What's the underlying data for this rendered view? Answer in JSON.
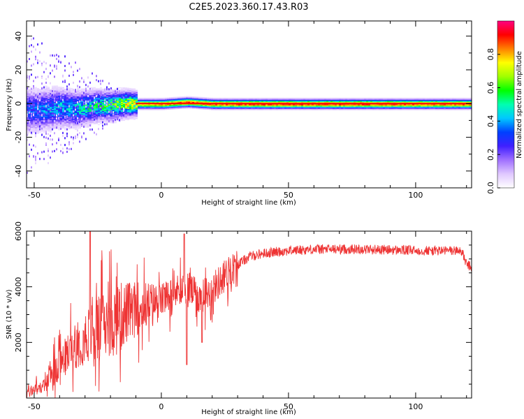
{
  "title": "C2E5.2023.360.17.43.R03",
  "chart_data": [
    {
      "type": "heatmap",
      "xlabel": "Height of straight line (km)",
      "ylabel": "Frequency (Hz)",
      "xlim": [
        -53,
        122
      ],
      "ylim": [
        -50,
        49
      ],
      "x_ticks": [
        -50,
        0,
        50,
        100
      ],
      "y_ticks": [
        -40,
        -20,
        0,
        20,
        40
      ],
      "colorbar": {
        "label": "Normalized spectral amplitude",
        "range": [
          0,
          1
        ],
        "ticks": [
          "0.0",
          "0.2",
          "0.4",
          "0.6",
          "0.8"
        ],
        "colors": [
          "#ffffff",
          "#e0c8ff",
          "#a070ff",
          "#4020ff",
          "#0040ff",
          "#00c8ff",
          "#00ffb0",
          "#00ff00",
          "#a0ff00",
          "#ffff00",
          "#ff8000",
          "#ff0000",
          "#ff0080"
        ]
      },
      "ridge": [
        {
          "x": -50,
          "f": -4,
          "amp": 0.35
        },
        {
          "x": -45,
          "f": -3,
          "amp": 0.4
        },
        {
          "x": -40,
          "f": -2,
          "amp": 0.45
        },
        {
          "x": -35,
          "f": -3,
          "amp": 0.45
        },
        {
          "x": -30,
          "f": -2,
          "amp": 0.5
        },
        {
          "x": -25,
          "f": -1,
          "amp": 0.55
        },
        {
          "x": -20,
          "f": -1,
          "amp": 0.6
        },
        {
          "x": -15,
          "f": 0,
          "amp": 0.7
        },
        {
          "x": -10,
          "f": 0,
          "amp": 0.8
        },
        {
          "x": 0,
          "f": 0,
          "amp": 0.85
        },
        {
          "x": 10,
          "f": 1,
          "amp": 0.9
        },
        {
          "x": 20,
          "f": 0,
          "amp": 0.9
        },
        {
          "x": 40,
          "f": 0,
          "amp": 0.92
        },
        {
          "x": 60,
          "f": 0,
          "amp": 0.92
        },
        {
          "x": 80,
          "f": 0,
          "amp": 0.92
        },
        {
          "x": 100,
          "f": 0,
          "amp": 0.9
        },
        {
          "x": 120,
          "f": 0,
          "amp": 0.88
        }
      ]
    },
    {
      "type": "line",
      "xlabel": "Height of straight line (km)",
      "ylabel": "SNR (10 * v/v)",
      "xlim": [
        -53,
        122
      ],
      "ylim": [
        0,
        6000
      ],
      "x_ticks": [
        -50,
        0,
        50,
        100
      ],
      "y_ticks": [
        2000,
        4000,
        6000
      ],
      "color": "#ee3333",
      "envelope": [
        {
          "x": -53,
          "y": 200
        },
        {
          "x": -45,
          "y": 500
        },
        {
          "x": -40,
          "y": 1200
        },
        {
          "x": -35,
          "y": 1800
        },
        {
          "x": -30,
          "y": 2200
        },
        {
          "x": -25,
          "y": 2500
        },
        {
          "x": -20,
          "y": 2700
        },
        {
          "x": -15,
          "y": 3000
        },
        {
          "x": -10,
          "y": 3200
        },
        {
          "x": -5,
          "y": 3400
        },
        {
          "x": 0,
          "y": 3500
        },
        {
          "x": 5,
          "y": 3800
        },
        {
          "x": 10,
          "y": 4000
        },
        {
          "x": 15,
          "y": 3600
        },
        {
          "x": 20,
          "y": 3900
        },
        {
          "x": 25,
          "y": 4400
        },
        {
          "x": 30,
          "y": 4800
        },
        {
          "x": 35,
          "y": 5100
        },
        {
          "x": 40,
          "y": 5200
        },
        {
          "x": 50,
          "y": 5300
        },
        {
          "x": 60,
          "y": 5350
        },
        {
          "x": 80,
          "y": 5350
        },
        {
          "x": 100,
          "y": 5300
        },
        {
          "x": 118,
          "y": 5300
        },
        {
          "x": 120,
          "y": 4800
        },
        {
          "x": 122,
          "y": 4700
        }
      ],
      "spikes": [
        {
          "x": -28,
          "y": 6000
        },
        {
          "x": 9,
          "y": 5900
        },
        {
          "x": 16,
          "y": 5700
        },
        {
          "x": 10,
          "y": 1200
        },
        {
          "x": 16,
          "y": 2000
        }
      ]
    }
  ]
}
